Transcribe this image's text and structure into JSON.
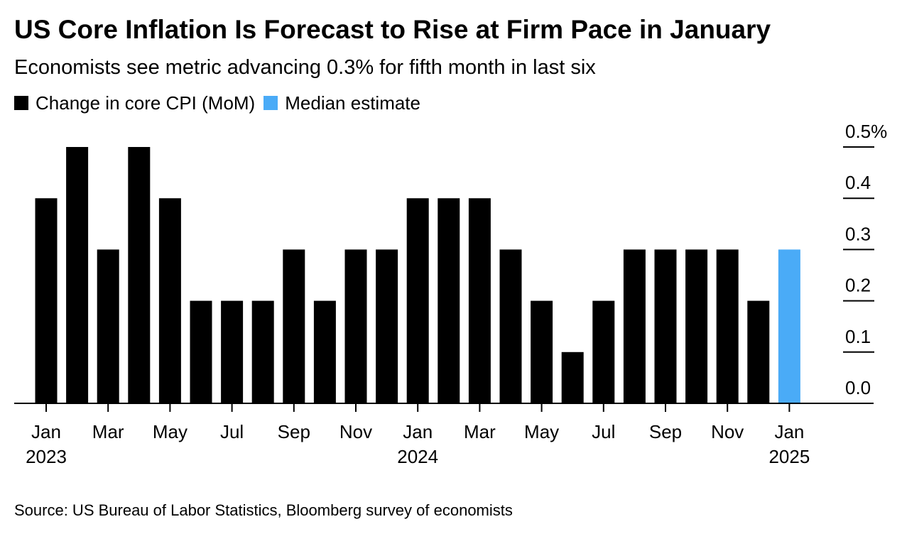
{
  "header": {
    "title": "US Core Inflation Is Forecast to Rise at Firm Pace in January",
    "subtitle": "Economists see metric advancing 0.3% for fifth month in last six"
  },
  "legend": {
    "items": [
      {
        "label": "Change in core CPI (MoM)",
        "color": "#000000"
      },
      {
        "label": "Median estimate",
        "color": "#4aabf7"
      }
    ]
  },
  "footer": {
    "source": "Source: US Bureau of Labor Statistics, Bloomberg survey of economists"
  },
  "chart_data": {
    "type": "bar",
    "categories": [
      "2023-01",
      "2023-02",
      "2023-03",
      "2023-04",
      "2023-05",
      "2023-06",
      "2023-07",
      "2023-08",
      "2023-09",
      "2023-10",
      "2023-11",
      "2023-12",
      "2024-01",
      "2024-02",
      "2024-03",
      "2024-04",
      "2024-05",
      "2024-06",
      "2024-07",
      "2024-08",
      "2024-09",
      "2024-10",
      "2024-11",
      "2024-12",
      "2025-01"
    ],
    "series": [
      {
        "name": "Change in core CPI (MoM)",
        "color": "#000000",
        "values": [
          0.4,
          0.5,
          0.3,
          0.5,
          0.4,
          0.2,
          0.2,
          0.2,
          0.3,
          0.2,
          0.3,
          0.3,
          0.4,
          0.4,
          0.4,
          0.3,
          0.2,
          0.1,
          0.2,
          0.3,
          0.3,
          0.3,
          0.3,
          0.2,
          null
        ]
      },
      {
        "name": "Median estimate",
        "color": "#4aabf7",
        "values": [
          null,
          null,
          null,
          null,
          null,
          null,
          null,
          null,
          null,
          null,
          null,
          null,
          null,
          null,
          null,
          null,
          null,
          null,
          null,
          null,
          null,
          null,
          null,
          null,
          0.3
        ]
      }
    ],
    "ylim": [
      0,
      0.5
    ],
    "y_ticks": [
      {
        "value": 0.0,
        "label": "0.0"
      },
      {
        "value": 0.1,
        "label": "0.1"
      },
      {
        "value": 0.2,
        "label": "0.2"
      },
      {
        "value": 0.3,
        "label": "0.3"
      },
      {
        "value": 0.4,
        "label": "0.4"
      },
      {
        "value": 0.5,
        "label": "0.5%"
      }
    ],
    "y_axis_side": "right",
    "x_ticks": [
      {
        "category": "2023-01",
        "label": "Jan",
        "year": "2023"
      },
      {
        "category": "2023-03",
        "label": "Mar",
        "year": ""
      },
      {
        "category": "2023-05",
        "label": "May",
        "year": ""
      },
      {
        "category": "2023-07",
        "label": "Jul",
        "year": ""
      },
      {
        "category": "2023-09",
        "label": "Sep",
        "year": ""
      },
      {
        "category": "2023-11",
        "label": "Nov",
        "year": ""
      },
      {
        "category": "2024-01",
        "label": "Jan",
        "year": "2024"
      },
      {
        "category": "2024-03",
        "label": "Mar",
        "year": ""
      },
      {
        "category": "2024-05",
        "label": "May",
        "year": ""
      },
      {
        "category": "2024-07",
        "label": "Jul",
        "year": ""
      },
      {
        "category": "2024-09",
        "label": "Sep",
        "year": ""
      },
      {
        "category": "2024-11",
        "label": "Nov",
        "year": ""
      },
      {
        "category": "2025-01",
        "label": "Jan",
        "year": "2025"
      }
    ],
    "grid": false,
    "legend_position": "top-left"
  }
}
